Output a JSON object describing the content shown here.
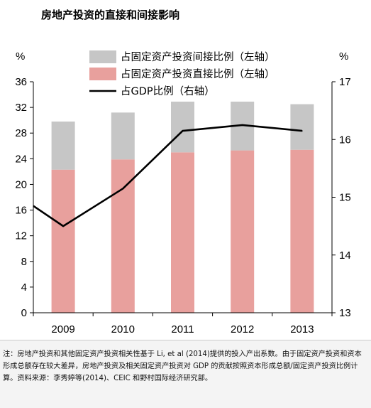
{
  "title": "房地产投资的直接和间接影响",
  "note": "注：房地产投资和其他固定资产投资相关性基于 Li, et al (2014)提供的投入产出系数。由于固定资产投资和资本形成总额存在较大差异，房地产投资及相关固定资产投资对 GDP 的贡献按照资本形成总额/固定资产投资比例计算。资料来源：李秀婷等(2014)、CEIC 和野村国际经济研究部。",
  "colors": {
    "indirect": "#c6c6c6",
    "direct": "#e8a09d",
    "line": "#000000"
  },
  "chart_data": {
    "type": "bar",
    "stacked": true,
    "categories": [
      "2009",
      "2010",
      "2011",
      "2012",
      "2013"
    ],
    "series": [
      {
        "name": "占固定资产投资直接比例（左轴）",
        "axis": "left",
        "type": "bar",
        "values": [
          22.3,
          23.9,
          25.0,
          25.3,
          25.4
        ]
      },
      {
        "name": "占固定资产投资间接比例（左轴）",
        "axis": "left",
        "type": "bar",
        "values": [
          7.5,
          7.3,
          7.9,
          7.6,
          7.1
        ]
      },
      {
        "name": "占GDP比例（右轴）",
        "axis": "right",
        "type": "line",
        "values": [
          14.5,
          15.15,
          16.15,
          16.25,
          16.15
        ]
      }
    ],
    "line_start_value": 14.85,
    "y_left": {
      "label": "%",
      "min": 0,
      "max": 36,
      "ticks": [
        "0",
        "4",
        "8",
        "12",
        "16",
        "20",
        "24",
        "28",
        "32",
        "36"
      ]
    },
    "y_right": {
      "label": "%",
      "min": 13,
      "max": 17,
      "ticks": [
        "13",
        "14",
        "15",
        "16",
        "17"
      ]
    },
    "legend_position": "top",
    "grid": false
  }
}
